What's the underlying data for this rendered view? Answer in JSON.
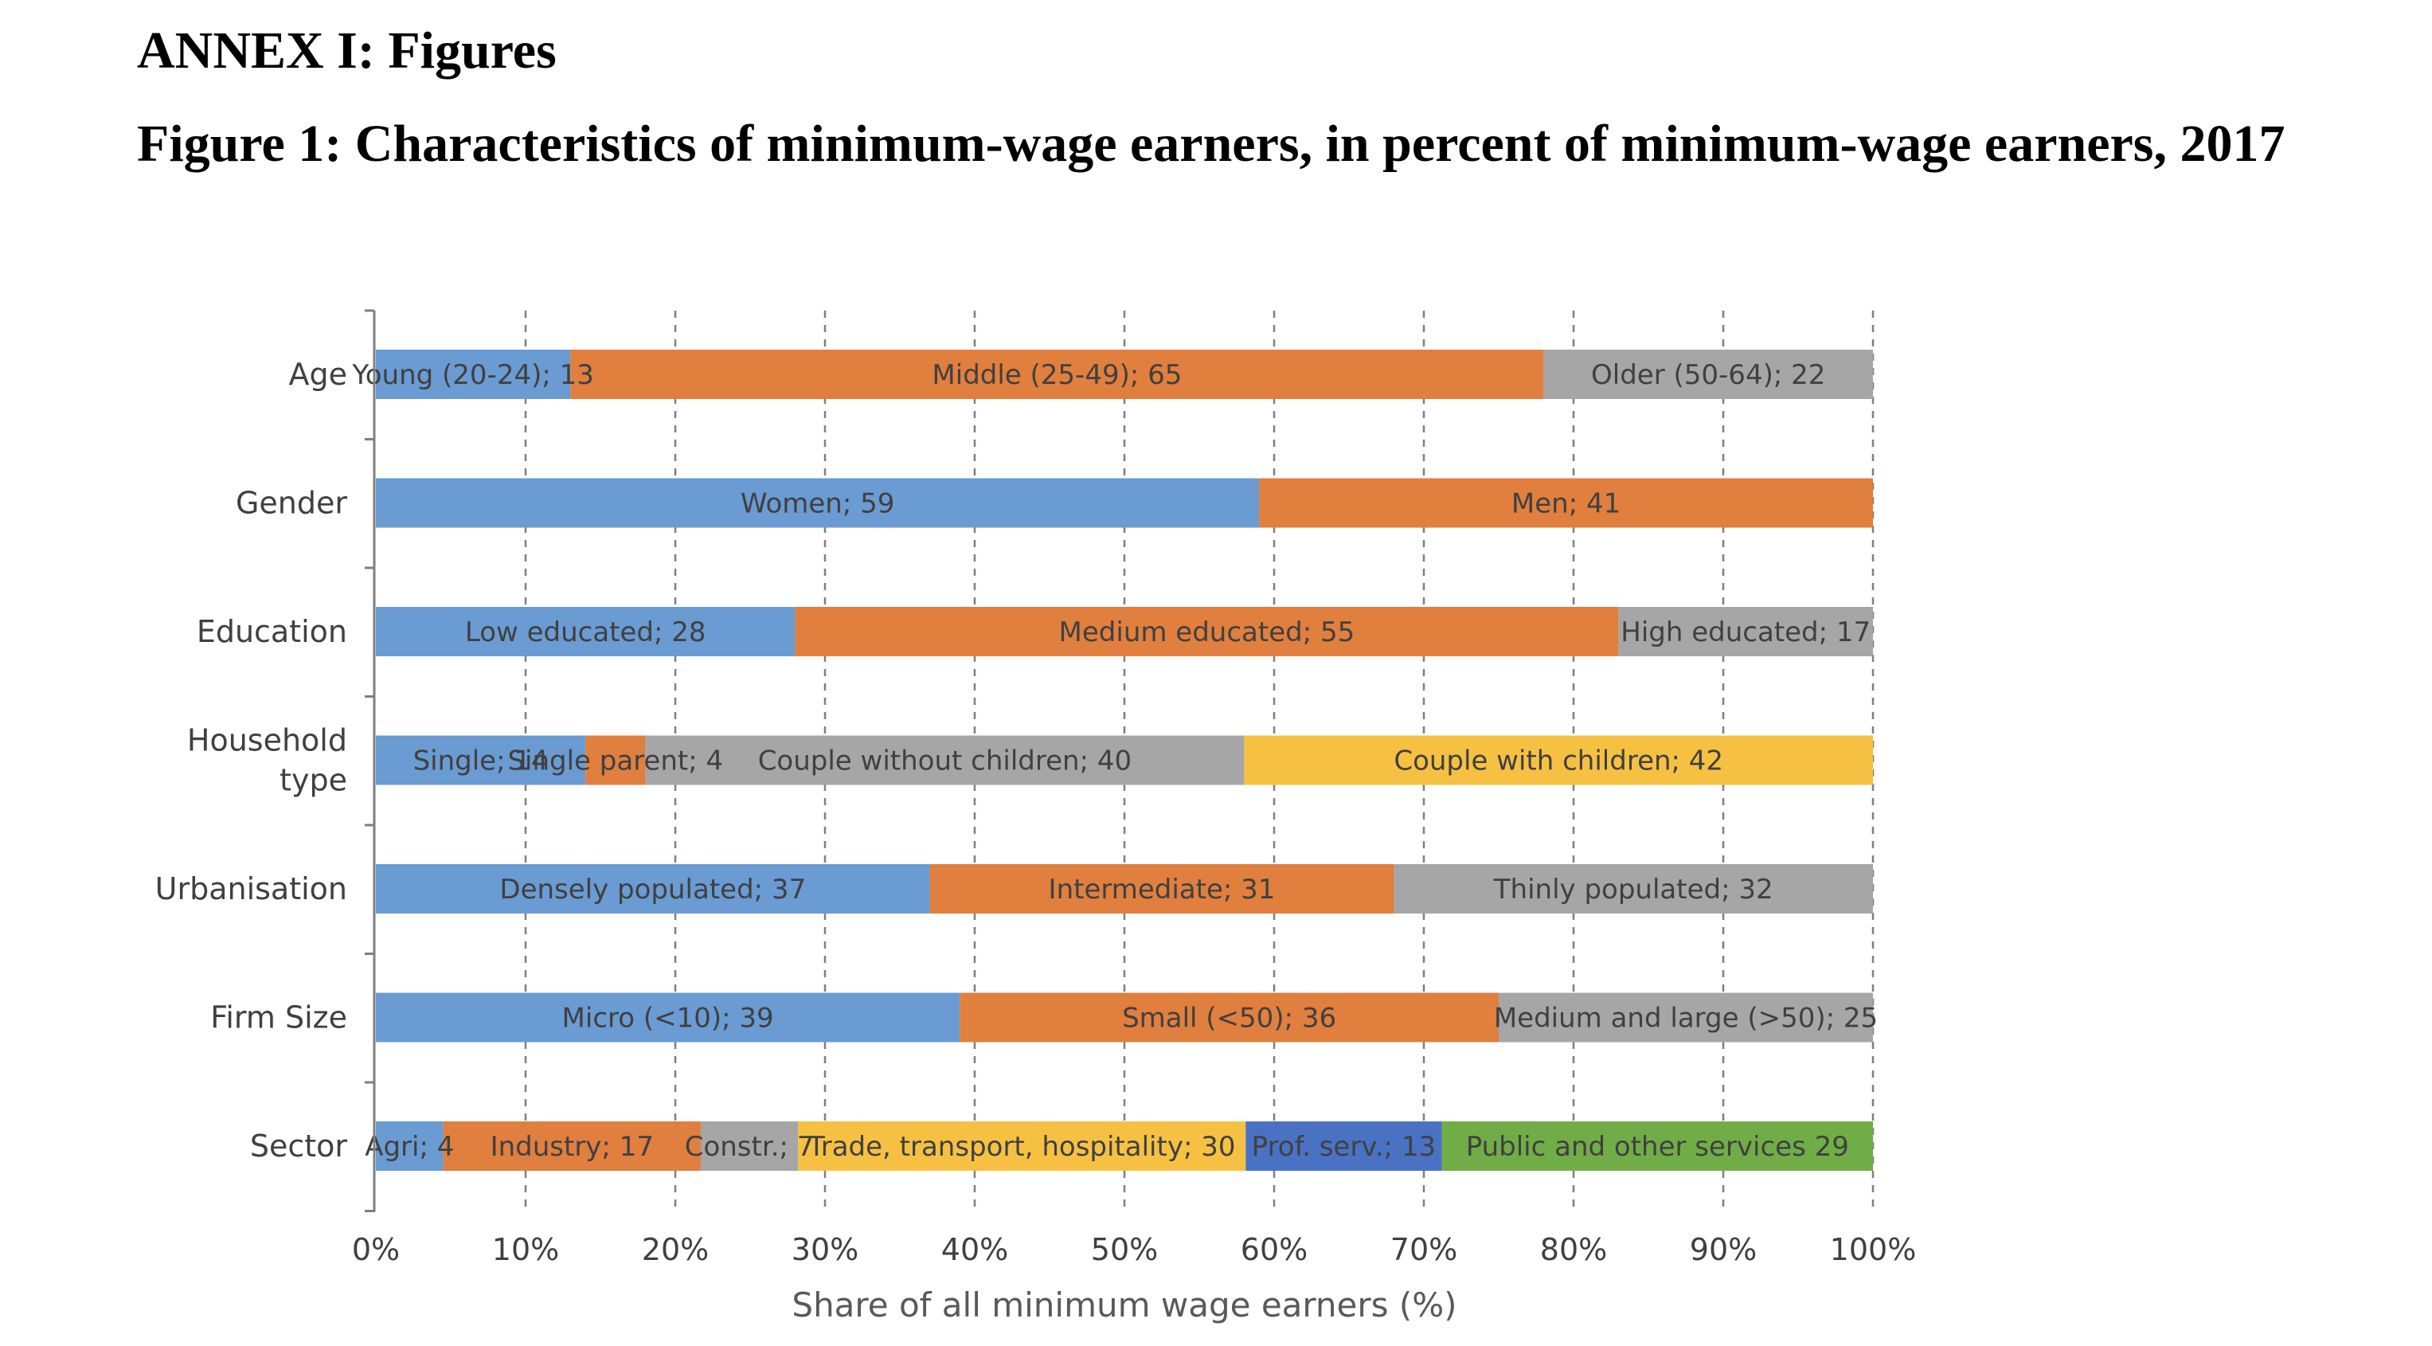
{
  "annex_title": "ANNEX I: Figures",
  "figure_title": "Figure 1: Characteristics of minimum-wage earners, in percent of minimum-wage earners, 2017",
  "colors": {
    "blue": "#6a9bd2",
    "orange": "#e07f3e",
    "grey": "#a6a6a6",
    "yellow": "#f6c143",
    "darkblue": "#4a72c4",
    "green": "#71ad47"
  },
  "chart_data": {
    "type": "bar",
    "orientation": "horizontal",
    "stacked": true,
    "xlabel": "Share of all minimum wage earners (%)",
    "ylabel": "",
    "xlim": [
      0,
      100
    ],
    "xticks": [
      "0%",
      "10%",
      "20%",
      "30%",
      "40%",
      "50%",
      "60%",
      "70%",
      "80%",
      "90%",
      "100%"
    ],
    "grid": "vertical dashed",
    "legend": "none",
    "categories": [
      {
        "name": [
          "Age"
        ],
        "segments": [
          {
            "label": "Young (20-24); 13",
            "value": 13,
            "color": "#6a9bd2"
          },
          {
            "label": "Middle (25-49); 65",
            "value": 65,
            "color": "#e07f3e"
          },
          {
            "label": "Older (50-64); 22",
            "value": 22,
            "color": "#a6a6a6"
          }
        ]
      },
      {
        "name": [
          "Gender"
        ],
        "segments": [
          {
            "label": "Women; 59",
            "value": 59,
            "color": "#6a9bd2"
          },
          {
            "label": "Men; 41",
            "value": 41,
            "color": "#e07f3e"
          }
        ]
      },
      {
        "name": [
          "Education"
        ],
        "segments": [
          {
            "label": "Low educated; 28",
            "value": 28,
            "color": "#6a9bd2"
          },
          {
            "label": "Medium educated; 55",
            "value": 55,
            "color": "#e07f3e"
          },
          {
            "label": "High educated; 17",
            "value": 17,
            "color": "#a6a6a6"
          }
        ]
      },
      {
        "name": [
          "Household",
          "type"
        ],
        "segments": [
          {
            "label": "Single; 14",
            "value": 14,
            "color": "#6a9bd2"
          },
          {
            "label": "Single parent; 4",
            "value": 4,
            "color": "#e07f3e"
          },
          {
            "label": "Couple without children; 40",
            "value": 40,
            "color": "#a6a6a6"
          },
          {
            "label": "Couple with children; 42",
            "value": 42,
            "color": "#f6c143"
          }
        ]
      },
      {
        "name": [
          "Urbanisation"
        ],
        "segments": [
          {
            "label": "Densely populated; 37",
            "value": 37,
            "color": "#6a9bd2"
          },
          {
            "label": "Intermediate; 31",
            "value": 31,
            "color": "#e07f3e"
          },
          {
            "label": "Thinly populated; 32",
            "value": 32,
            "color": "#a6a6a6"
          }
        ]
      },
      {
        "name": [
          "Firm Size"
        ],
        "segments": [
          {
            "label": "Micro (<10); 39",
            "value": 39,
            "color": "#6a9bd2"
          },
          {
            "label": "Small (<50); 36",
            "value": 36,
            "color": "#e07f3e"
          },
          {
            "label": "Medium and large (>50); 25",
            "value": 25,
            "color": "#a6a6a6"
          }
        ]
      },
      {
        "name": [
          "Sector"
        ],
        "segments": [
          {
            "label": "Agri; 4",
            "value": 4.5,
            "color": "#6a9bd2"
          },
          {
            "label": "Industry; 17",
            "value": 17.2,
            "color": "#e07f3e"
          },
          {
            "label": "Constr.; 7",
            "value": 6.5,
            "color": "#a6a6a6"
          },
          {
            "label": "Trade, transport, hospitality; 30",
            "value": 29.9,
            "color": "#f6c143"
          },
          {
            "label": "Prof. serv.; 13",
            "value": 13.1,
            "color": "#4a72c4"
          },
          {
            "label": "Public and other services 29",
            "value": 28.8,
            "color": "#71ad47"
          }
        ]
      }
    ]
  }
}
